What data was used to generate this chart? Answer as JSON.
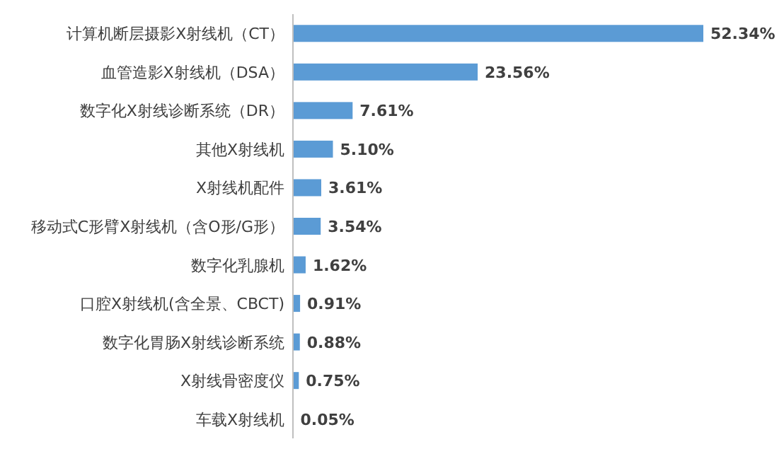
{
  "chart_data": {
    "type": "bar",
    "orientation": "horizontal",
    "color": "#5b9bd5",
    "categories": [
      "计算机断层摄影X射线机（CT）",
      "血管造影X射线机（DSA）",
      "数字化X射线诊断系统（DR）",
      "其他X射线机",
      "X射线机配件",
      "移动式C形臂X射线机（含O形/G形）",
      "数字化乳腺机",
      "口腔X射线机(含全景、CBCT)",
      "数字化胃肠X射线诊断系统",
      "X射线骨密度仪",
      "车载X射线机"
    ],
    "values": [
      52.34,
      23.56,
      7.61,
      5.1,
      3.61,
      3.54,
      1.62,
      0.91,
      0.88,
      0.75,
      0.05
    ],
    "value_labels": [
      "52.34%",
      "23.56%",
      "7.61%",
      "5.10%",
      "3.61%",
      "3.54%",
      "1.62%",
      "0.91%",
      "0.88%",
      "0.75%",
      "0.05%"
    ]
  }
}
